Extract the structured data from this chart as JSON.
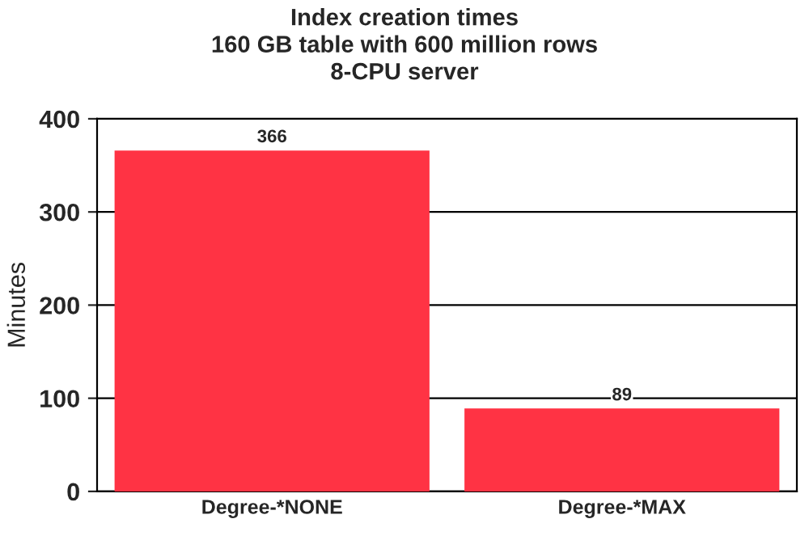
{
  "chart_data": {
    "type": "bar",
    "title": "Index creation times\n160 GB table with 600 million rows\n8-CPU server",
    "ylabel": "Minutes",
    "categories": [
      "Degree-*NONE",
      "Degree-*MAX"
    ],
    "values": [
      366,
      89
    ],
    "color": "#ff3344",
    "ylim": [
      0,
      400
    ],
    "yticks": [
      0,
      100,
      200,
      300,
      400
    ],
    "grid": "y",
    "data_labels": true
  }
}
